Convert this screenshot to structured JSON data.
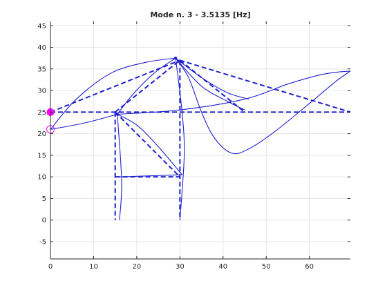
{
  "chart_data": {
    "type": "line",
    "title": "Mode n. 3 - 3.5135 [Hz]",
    "xlabel": "",
    "ylabel": "",
    "xlim": [
      0,
      69.5
    ],
    "ylim": [
      -9,
      46
    ],
    "x_ticks": [
      0,
      10,
      20,
      30,
      40,
      50,
      60
    ],
    "y_ticks": [
      -5,
      0,
      5,
      10,
      15,
      20,
      25,
      30,
      35,
      40,
      45
    ],
    "grid": true,
    "legend": "none",
    "colors": {
      "line": "#1f1fcf",
      "marker": "#ff00ff",
      "grid": "#e6e6e6",
      "axis": "#262626"
    },
    "series": [
      {
        "style": "dashed",
        "note_segments": [
          [
            [
              0,
              25
            ],
            [
              15,
              25
            ],
            [
              69.5,
              25
            ]
          ],
          [
            [
              0,
              25
            ],
            [
              30,
              37
            ]
          ],
          [
            [
              15,
              25
            ],
            [
              30,
              37
            ]
          ],
          [
            [
              30,
              37
            ],
            [
              69.5,
              25
            ]
          ],
          [
            [
              30,
              37
            ],
            [
              45,
              25
            ]
          ],
          [
            [
              15,
              25
            ],
            [
              30,
              10
            ]
          ],
          [
            [
              15,
              25
            ],
            [
              15,
              0
            ]
          ],
          [
            [
              30,
              37
            ],
            [
              30,
              0
            ]
          ],
          [
            [
              15,
              10
            ],
            [
              30,
              10
            ]
          ]
        ]
      },
      {
        "style": "solid",
        "curves": [
          [
            [
              0,
              21
            ],
            [
              8,
              22.5
            ],
            [
              15.5,
              24.5
            ]
          ],
          [
            [
              15.5,
              24.5
            ],
            [
              30,
              25.5
            ],
            [
              45,
              28
            ],
            [
              55,
              31.5
            ],
            [
              62,
              33.5
            ],
            [
              66,
              34.2
            ],
            [
              69.5,
              34.5
            ]
          ],
          [
            [
              0,
              21
            ],
            [
              6,
              28
            ],
            [
              14,
              34
            ],
            [
              22,
              36.5
            ],
            [
              29,
              37.5
            ]
          ],
          [
            [
              29,
              37.5
            ],
            [
              32,
              33
            ],
            [
              35,
              25
            ],
            [
              38,
              19
            ],
            [
              42,
              15.5
            ],
            [
              46,
              16.5
            ],
            [
              52,
              20.5
            ],
            [
              60,
              27
            ],
            [
              66,
              32
            ],
            [
              69.5,
              34.5
            ]
          ],
          [
            [
              15.5,
              24.5
            ],
            [
              19,
              29
            ],
            [
              24,
              34
            ],
            [
              29,
              37.5
            ]
          ],
          [
            [
              15.5,
              24.5
            ],
            [
              20,
              22
            ],
            [
              25,
              17
            ],
            [
              30.5,
              10.5
            ]
          ],
          [
            [
              16,
              0
            ],
            [
              16.5,
              9
            ],
            [
              15.5,
              24.5
            ]
          ],
          [
            [
              30,
              0
            ],
            [
              31,
              15
            ],
            [
              30.5,
              25
            ],
            [
              29,
              37.5
            ]
          ],
          [
            [
              16,
              10
            ],
            [
              30.5,
              10.5
            ]
          ],
          [
            [
              29,
              37.5
            ],
            [
              35,
              33
            ],
            [
              41,
              29.5
            ],
            [
              46,
              28
            ]
          ],
          [
            [
              29,
              37.5
            ],
            [
              35,
              31
            ],
            [
              41,
              27.5
            ],
            [
              45,
              25.5
            ]
          ]
        ]
      }
    ],
    "markers": [
      {
        "shape": "filled-circle",
        "x": 0,
        "y": 25
      },
      {
        "shape": "open-circle",
        "x": 0,
        "y": 21
      }
    ]
  }
}
